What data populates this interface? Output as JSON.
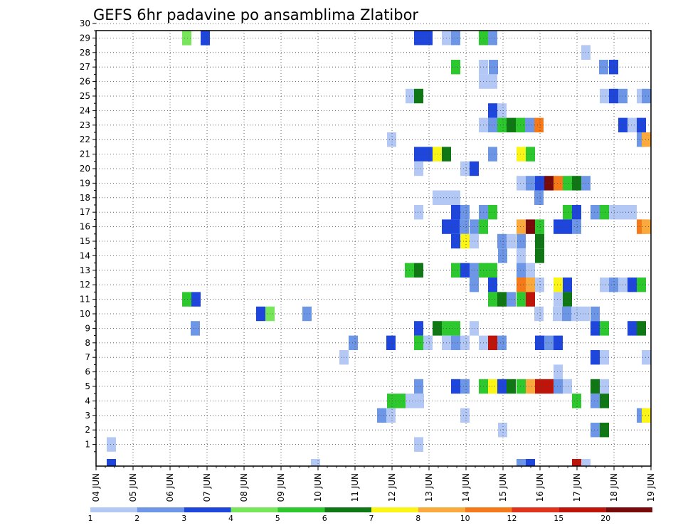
{
  "chart_data": {
    "type": "heatmap",
    "title": "GEFS 6hr padavine po ansamblima Zlatibor",
    "x_tick_labels": [
      "04 JUN",
      "05 JUN",
      "06 JUN",
      "07 JUN",
      "08 JUN",
      "09 JUN",
      "10 JUN",
      "11 JUN",
      "12 JUN",
      "13 JUN",
      "14 JUN",
      "15 JUN",
      "16 JUN",
      "17 JUN",
      "18 JUN",
      "19 JUN"
    ],
    "y_tick_labels": [
      "1",
      "2",
      "3",
      "4",
      "5",
      "6",
      "7",
      "8",
      "9",
      "10",
      "11",
      "12",
      "13",
      "14",
      "15",
      "16",
      "17",
      "18",
      "19",
      "20",
      "21",
      "22",
      "23",
      "24",
      "25",
      "26",
      "27",
      "28",
      "29",
      "30"
    ],
    "x_range": [
      "04 JUN 00Z",
      "19 JUN 00Z"
    ],
    "y_range": [
      0,
      30
    ],
    "grid": "dotted",
    "legend": {
      "placement": "bottom",
      "levels": [
        "1",
        "2",
        "3",
        "4",
        "5",
        "6",
        "7",
        "8",
        "10",
        "12",
        "15",
        "20"
      ],
      "colors": [
        "#b4c8f5",
        "#6e96e6",
        "#1e46dc",
        "#78e65a",
        "#2dc82d",
        "#0f7814",
        "#faf514",
        "#faaa3c",
        "#f57819",
        "#e1321e",
        "#be140a",
        "#780a0a"
      ]
    },
    "x_step_hours": 6,
    "cells": [
      [
        0,
        30,
        3
      ],
      [
        4,
        30,
        3
      ],
      [
        5,
        30,
        1
      ],
      [
        6,
        30,
        2
      ],
      [
        8,
        30,
        5
      ],
      [
        9,
        30,
        2
      ],
      [
        0,
        29,
        4
      ],
      [
        2,
        29,
        3
      ],
      [
        0,
        28,
        10
      ],
      [
        7,
        28,
        1
      ],
      [
        3,
        27,
        5
      ],
      [
        5,
        27,
        1
      ],
      [
        6,
        27,
        2
      ],
      [
        10,
        27,
        2
      ],
      [
        11,
        27,
        3
      ],
      [
        5,
        26,
        1
      ],
      [
        6,
        26,
        1
      ],
      [
        0,
        25,
        1
      ],
      [
        1,
        25,
        6
      ],
      [
        10,
        25,
        1
      ],
      [
        11,
        25,
        3
      ],
      [
        12,
        25,
        2
      ],
      [
        14,
        25,
        1
      ],
      [
        15,
        25,
        2
      ],
      [
        6,
        24,
        3
      ],
      [
        7,
        24,
        1
      ],
      [
        2,
        23,
        1
      ],
      [
        3,
        23,
        2
      ],
      [
        4,
        23,
        5
      ],
      [
        5,
        23,
        6
      ],
      [
        6,
        23,
        5
      ],
      [
        7,
        23,
        2
      ],
      [
        8,
        23,
        9
      ],
      [
        12,
        23,
        3
      ],
      [
        13,
        23,
        1
      ],
      [
        14,
        23,
        3
      ],
      [
        0,
        22,
        1
      ],
      [
        14,
        22,
        2
      ],
      [
        15,
        22,
        8
      ],
      [
        0,
        21,
        3
      ],
      [
        1,
        21,
        3
      ],
      [
        2,
        21,
        7
      ],
      [
        3,
        21,
        6
      ],
      [
        6,
        21,
        2
      ],
      [
        9,
        21,
        7
      ],
      [
        10,
        21,
        5
      ],
      [
        1,
        20,
        1
      ],
      [
        5,
        20,
        1
      ],
      [
        6,
        20,
        3
      ],
      [
        9,
        19,
        1
      ],
      [
        10,
        19,
        2
      ],
      [
        11,
        19,
        3
      ],
      [
        12,
        19,
        12
      ],
      [
        13,
        19,
        9
      ],
      [
        14,
        19,
        5
      ],
      [
        15,
        19,
        6
      ],
      [
        16,
        19,
        2
      ],
      [
        2,
        18,
        1
      ],
      [
        3,
        18,
        1
      ],
      [
        4,
        18,
        1
      ],
      [
        11,
        18,
        2
      ],
      [
        5,
        17,
        2
      ],
      [
        4,
        17,
        3
      ],
      [
        1,
        17,
        1
      ],
      [
        7,
        17,
        2
      ],
      [
        8,
        17,
        5
      ],
      [
        14,
        17,
        5
      ],
      [
        15,
        17,
        3
      ],
      [
        17,
        17,
        2
      ],
      [
        18,
        17,
        5
      ],
      [
        19,
        17,
        1
      ],
      [
        20,
        17,
        1
      ],
      [
        21,
        17,
        1
      ],
      [
        3,
        16,
        3
      ],
      [
        4,
        16,
        3
      ],
      [
        8,
        16,
        2
      ],
      [
        6,
        16,
        2
      ],
      [
        7,
        16,
        5
      ],
      [
        11,
        16,
        8
      ],
      [
        12,
        16,
        12
      ],
      [
        13,
        16,
        5
      ],
      [
        18,
        16,
        3
      ],
      [
        19,
        16,
        3
      ],
      [
        20,
        16,
        2
      ],
      [
        22,
        16,
        9
      ],
      [
        23,
        16,
        8
      ],
      [
        4,
        15,
        3
      ],
      [
        5,
        15,
        7
      ],
      [
        6,
        15,
        1
      ],
      [
        7,
        15,
        2
      ],
      [
        8,
        15,
        1
      ],
      [
        11,
        15,
        2
      ],
      [
        13,
        15,
        6
      ],
      [
        8,
        14,
        2
      ],
      [
        11,
        14,
        1
      ],
      [
        13,
        14,
        6
      ],
      [
        0,
        13,
        5
      ],
      [
        1,
        13,
        6
      ],
      [
        4,
        13,
        5
      ],
      [
        5,
        13,
        3
      ],
      [
        6,
        13,
        2
      ],
      [
        7,
        13,
        5
      ],
      [
        8,
        13,
        5
      ],
      [
        11,
        13,
        2
      ],
      [
        12,
        13,
        1
      ],
      [
        6,
        12,
        2
      ],
      [
        8,
        12,
        3
      ],
      [
        11,
        12,
        9
      ],
      [
        12,
        12,
        8
      ],
      [
        13,
        12,
        1
      ],
      [
        15,
        12,
        7
      ],
      [
        16,
        12,
        3
      ],
      [
        17,
        12,
        1
      ],
      [
        18,
        12,
        2
      ],
      [
        19,
        12,
        1
      ],
      [
        21,
        12,
        3
      ],
      [
        22,
        12,
        5
      ],
      [
        0,
        11,
        5
      ],
      [
        1,
        11,
        3
      ],
      [
        9,
        11,
        5
      ],
      [
        10,
        11,
        6
      ],
      [
        11,
        11,
        2
      ],
      [
        12,
        11,
        5
      ],
      [
        13,
        11,
        11
      ],
      [
        16,
        11,
        1
      ],
      [
        17,
        11,
        6
      ],
      [
        14,
        10,
        3
      ],
      [
        15,
        10,
        4
      ],
      [
        16,
        10,
        2
      ],
      [
        17,
        10,
        1
      ],
      [
        18,
        10,
        1
      ],
      [
        19,
        10,
        2
      ],
      [
        20,
        10,
        1
      ],
      [
        21,
        10,
        1
      ],
      [
        22,
        10,
        2
      ],
      [
        9,
        9,
        2
      ],
      [
        10,
        9,
        3
      ],
      [
        11,
        9,
        6
      ],
      [
        12,
        9,
        5
      ],
      [
        13,
        9,
        5
      ],
      [
        14,
        9,
        1
      ],
      [
        20,
        9,
        3
      ],
      [
        21,
        9,
        5
      ],
      [
        23,
        9,
        3
      ],
      [
        24,
        9,
        6
      ],
      [
        5,
        8,
        2
      ],
      [
        7,
        8,
        3
      ],
      [
        9,
        8,
        5
      ],
      [
        10,
        8,
        1
      ],
      [
        12,
        8,
        1
      ],
      [
        13,
        8,
        2
      ],
      [
        14,
        8,
        1
      ],
      [
        16,
        8,
        1
      ],
      [
        17,
        8,
        11
      ],
      [
        18,
        8,
        2
      ],
      [
        20,
        8,
        3
      ],
      [
        21,
        8,
        2
      ],
      [
        22,
        8,
        3
      ],
      [
        6,
        7,
        1
      ],
      [
        22,
        7,
        3
      ],
      [
        23,
        7,
        1
      ],
      [
        25,
        7,
        1
      ],
      [
        21,
        6,
        1
      ],
      [
        6,
        5,
        2
      ],
      [
        9,
        5,
        3
      ],
      [
        10,
        5,
        2
      ],
      [
        12,
        5,
        5
      ],
      [
        13,
        5,
        7
      ],
      [
        14,
        5,
        3
      ],
      [
        15,
        5,
        6
      ],
      [
        16,
        5,
        5
      ],
      [
        17,
        5,
        8
      ],
      [
        18,
        5,
        11
      ],
      [
        19,
        5,
        11
      ],
      [
        21,
        5,
        2
      ],
      [
        22,
        5,
        1
      ],
      [
        24,
        5,
        6
      ],
      [
        25,
        5,
        1
      ],
      [
        4,
        4,
        5
      ],
      [
        5,
        4,
        5
      ],
      [
        6,
        4,
        1
      ],
      [
        7,
        4,
        1
      ],
      [
        23,
        4,
        5
      ],
      [
        25,
        4,
        2
      ],
      [
        26,
        4,
        6
      ],
      [
        4,
        3,
        2
      ],
      [
        5,
        3,
        1
      ],
      [
        10,
        3,
        1
      ],
      [
        27,
        3,
        2
      ],
      [
        28,
        3,
        7
      ],
      [
        14,
        2,
        1
      ],
      [
        25,
        2,
        2
      ],
      [
        26,
        2,
        6
      ],
      [
        1,
        1,
        1
      ],
      [
        2,
        1,
        1
      ],
      [
        7,
        1,
        1
      ],
      [
        1,
        0,
        3
      ],
      [
        9,
        0,
        1
      ],
      [
        19,
        0,
        2
      ],
      [
        20,
        0,
        3
      ],
      [
        22,
        0,
        11
      ],
      [
        23,
        0,
        1
      ]
    ]
  }
}
